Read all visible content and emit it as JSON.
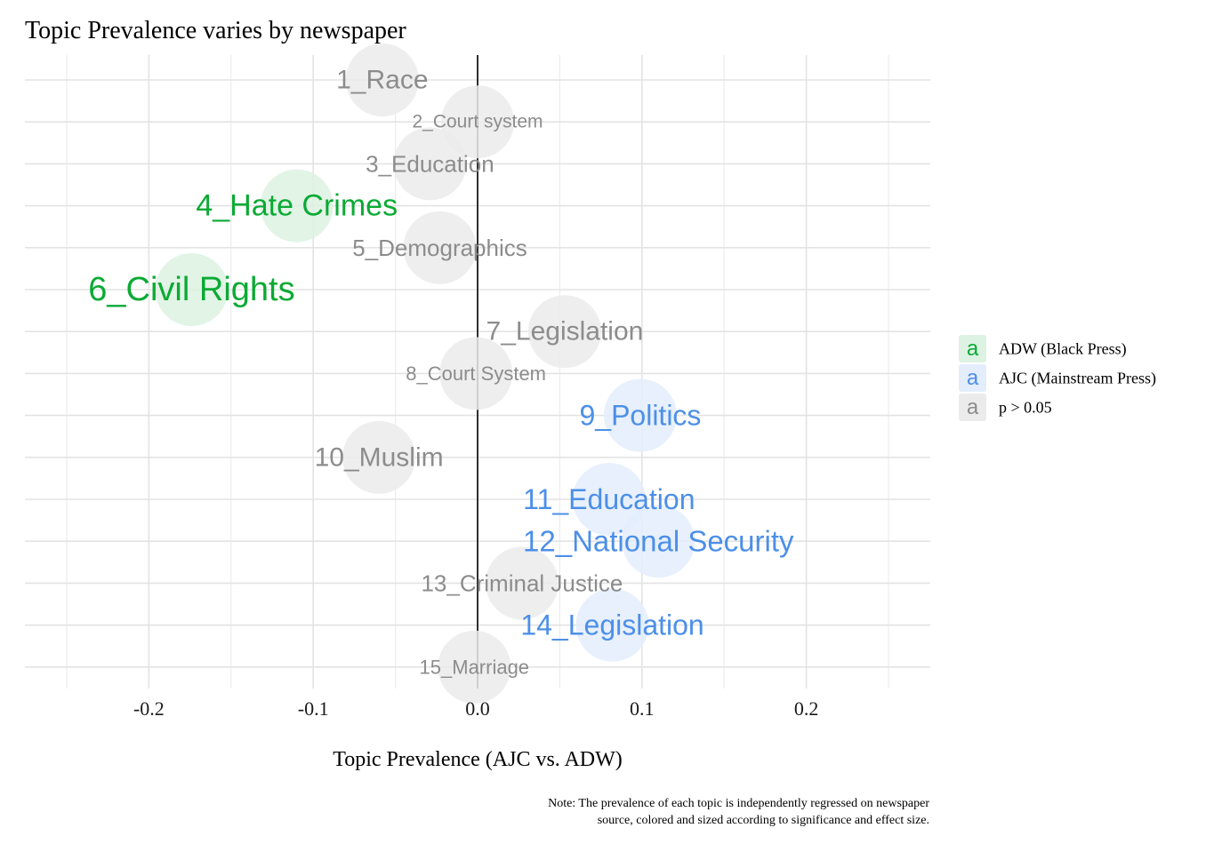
{
  "chart_data": {
    "type": "scatter",
    "title": "Topic Prevalence varies by newspaper",
    "xlabel": "Topic Prevalence (AJC vs. ADW)",
    "ylabel": "",
    "xlim": [
      -0.25,
      0.25
    ],
    "x_ticks": [
      "-0.2",
      "-0.1",
      "0.0",
      "0.1",
      "0.2"
    ],
    "x_tick_values": [
      -0.2,
      -0.1,
      0.0,
      0.1,
      0.2
    ],
    "grid": true,
    "reference_line_x": 0.0,
    "legend_position": "right",
    "note_lines": [
      "Note: The prevalence of each topic is independently regressed on newspaper",
      "source, colored and sized according to significance and effect size."
    ],
    "groups": [
      {
        "key": "adw",
        "label": "ADW (Black Press)",
        "color": "#0BAA34",
        "fill": "#DDF2E2"
      },
      {
        "key": "ajc",
        "label": "AJC (Mainstream Press)",
        "color": "#4C8FE8",
        "fill": "#E3EDFB"
      },
      {
        "key": "ns",
        "label": "p > 0.05",
        "color": "#8C8C8C",
        "fill": "#EBEBEB"
      }
    ],
    "legend_glyph": "a",
    "points": [
      {
        "label": "1_Race",
        "x": -0.058,
        "group": "ns",
        "size": 30
      },
      {
        "label": "2_Court system",
        "x": 0.0,
        "group": "ns",
        "size": 21
      },
      {
        "label": "3_Education",
        "x": -0.029,
        "group": "ns",
        "size": 26
      },
      {
        "label": "4_Hate Crimes",
        "x": -0.11,
        "group": "adw",
        "size": 34
      },
      {
        "label": "5_Demographics",
        "x": -0.023,
        "group": "ns",
        "size": 26
      },
      {
        "label": "6_Civil Rights",
        "x": -0.174,
        "group": "adw",
        "size": 38
      },
      {
        "label": "7_Legislation",
        "x": 0.053,
        "group": "ns",
        "size": 30
      },
      {
        "label": "8_Court System",
        "x": -0.001,
        "group": "ns",
        "size": 22
      },
      {
        "label": "9_Politics",
        "x": 0.099,
        "group": "ajc",
        "size": 32
      },
      {
        "label": "10_Muslim",
        "x": -0.06,
        "group": "ns",
        "size": 30
      },
      {
        "label": "11_Education",
        "x": 0.08,
        "group": "ajc",
        "size": 32
      },
      {
        "label": "12_National Security",
        "x": 0.11,
        "group": "ajc",
        "size": 33
      },
      {
        "label": "13_Criminal Justice",
        "x": 0.027,
        "group": "ns",
        "size": 26
      },
      {
        "label": "14_Legislation",
        "x": 0.082,
        "group": "ajc",
        "size": 32
      },
      {
        "label": "15_Marriage",
        "x": -0.002,
        "group": "ns",
        "size": 22
      }
    ]
  }
}
